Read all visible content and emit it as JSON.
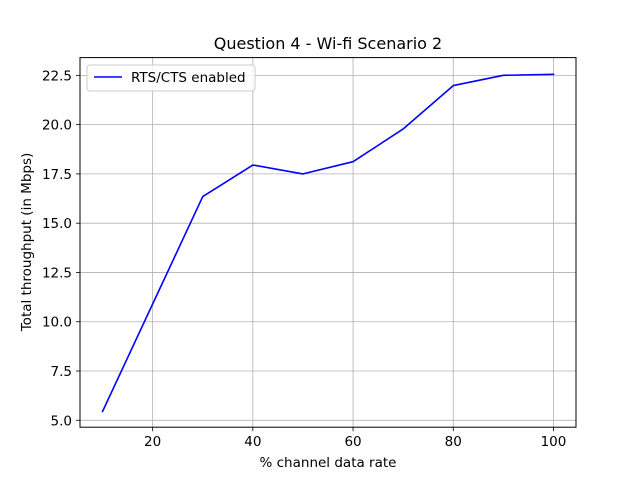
{
  "chart_data": {
    "type": "line",
    "title": "Question 4 - Wi-fi Scenario 2",
    "xlabel": "% channel data rate",
    "ylabel": "Total throughput (in Mbps)",
    "xlim": [
      5.5,
      104.5
    ],
    "ylim": [
      4.65,
      23.4
    ],
    "xticks": [
      20,
      40,
      60,
      80,
      100
    ],
    "yticks": [
      5.0,
      7.5,
      10.0,
      12.5,
      15.0,
      17.5,
      20.0,
      22.5
    ],
    "xtick_labels": [
      "20",
      "40",
      "60",
      "80",
      "100"
    ],
    "ytick_labels": [
      "5.0",
      "7.5",
      "10.0",
      "12.5",
      "15.0",
      "17.5",
      "20.0",
      "22.5"
    ],
    "grid": true,
    "legend_position": "upper-left",
    "series": [
      {
        "name": "RTS/CTS enabled",
        "color": "#0000ff",
        "x": [
          10,
          20,
          30,
          40,
          50,
          60,
          70,
          80,
          90,
          100
        ],
        "y": [
          5.45,
          10.9,
          16.35,
          17.95,
          17.5,
          18.12,
          19.78,
          21.98,
          22.5,
          22.55
        ]
      }
    ]
  }
}
